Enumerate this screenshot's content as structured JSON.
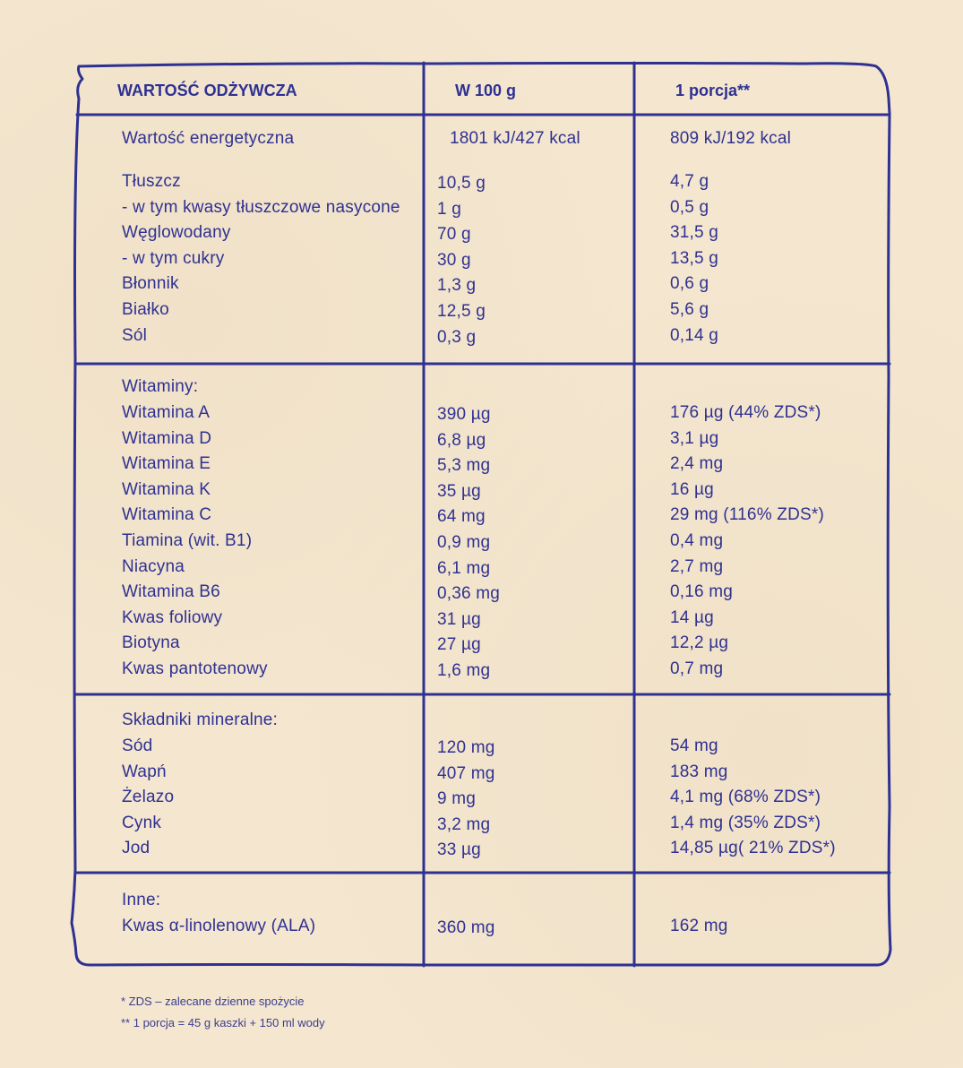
{
  "header": {
    "col1": "WARTOŚĆ ODŻYWCZA",
    "col2": "W 100 g",
    "col3": "1 porcja**"
  },
  "energy": {
    "label": "Wartość energetyczna",
    "per100": "1801 kJ/427 kcal",
    "portion": "809 kJ/192 kcal"
  },
  "macros": [
    {
      "label": "Tłuszcz",
      "per100": "10,5 g",
      "portion": "4,7 g"
    },
    {
      "label": "- w tym kwasy tłuszczowe nasycone",
      "per100": "1 g",
      "portion": "0,5 g"
    },
    {
      "label": "Węglowodany",
      "per100": "70 g",
      "portion": "31,5 g"
    },
    {
      "label": "- w tym cukry",
      "per100": "30 g",
      "portion": "13,5 g"
    },
    {
      "label": "Błonnik",
      "per100": "1,3 g",
      "portion": "0,6 g"
    },
    {
      "label": "Białko",
      "per100": "12,5 g",
      "portion": "5,6 g"
    },
    {
      "label": "Sól",
      "per100": "0,3 g",
      "portion": "0,14 g"
    }
  ],
  "vitamins": {
    "title": "Witaminy:",
    "rows": [
      {
        "label": "Witamina A",
        "per100": "390 µg",
        "portion": "176 µg (44% ZDS*)"
      },
      {
        "label": "Witamina D",
        "per100": "6,8 µg",
        "portion": "3,1 µg"
      },
      {
        "label": "Witamina E",
        "per100": "5,3 mg",
        "portion": "2,4 mg"
      },
      {
        "label": "Witamina K",
        "per100": "35 µg",
        "portion": "16 µg"
      },
      {
        "label": "Witamina C",
        "per100": "64 mg",
        "portion": "29 mg (116% ZDS*)"
      },
      {
        "label": "Tiamina (wit. B1)",
        "per100": "0,9 mg",
        "portion": "0,4 mg"
      },
      {
        "label": "Niacyna",
        "per100": "6,1 mg",
        "portion": "2,7 mg"
      },
      {
        "label": "Witamina B6",
        "per100": "0,36 mg",
        "portion": "0,16 mg"
      },
      {
        "label": "Kwas foliowy",
        "per100": "31 µg",
        "portion": "14 µg"
      },
      {
        "label": "Biotyna",
        "per100": "27 µg",
        "portion": "12,2 µg"
      },
      {
        "label": "Kwas pantotenowy",
        "per100": "1,6 mg",
        "portion": "0,7 mg"
      }
    ]
  },
  "minerals": {
    "title": "Składniki mineralne:",
    "rows": [
      {
        "label": "Sód",
        "per100": "120 mg",
        "portion": "54 mg"
      },
      {
        "label": "Wapń",
        "per100": "407 mg",
        "portion": "183 mg"
      },
      {
        "label": "Żelazo",
        "per100": "9 mg",
        "portion": "4,1 mg (68% ZDS*)"
      },
      {
        "label": "Cynk",
        "per100": "3,2 mg",
        "portion": "1,4 mg (35% ZDS*)"
      },
      {
        "label": "Jod",
        "per100": "33 µg",
        "portion": "14,85 µg( 21% ZDS*)"
      }
    ]
  },
  "other": {
    "title": "Inne:",
    "rows": [
      {
        "label": "Kwas α-linolenowy (ALA)",
        "per100": "360 mg",
        "portion": "162 mg"
      }
    ]
  },
  "footnotes": [
    "* ZDS – zalecane dzienne spożycie",
    "** 1 porcja = 45 g kaszki + 150 ml wody"
  ],
  "colors": {
    "ink": "#2e3192",
    "paper": "#f4e6cf"
  }
}
